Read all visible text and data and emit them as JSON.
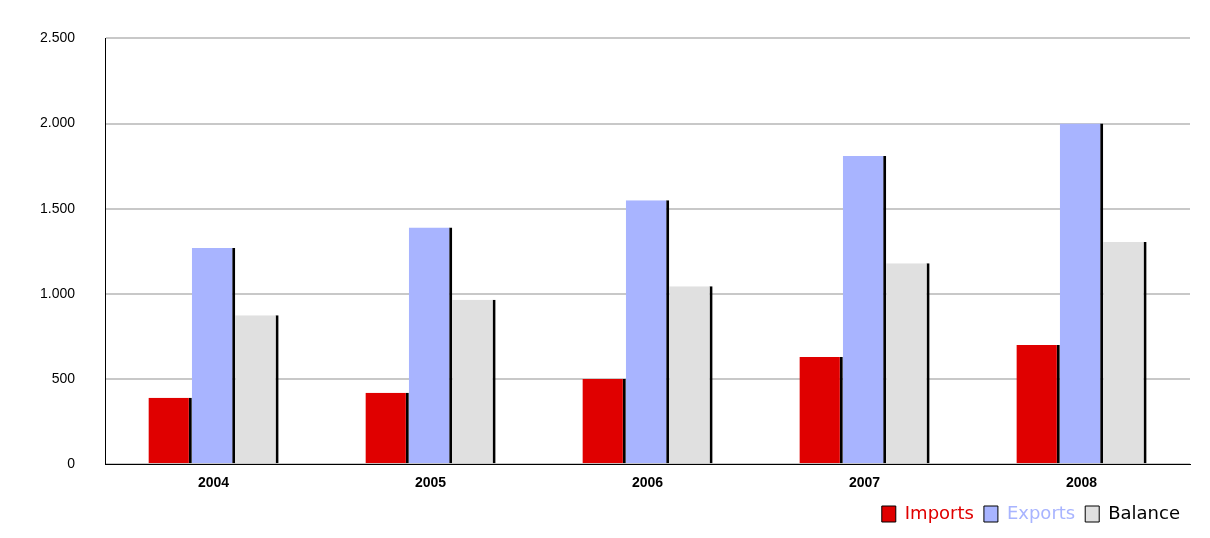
{
  "chart_data": {
    "type": "bar",
    "categories": [
      "2004",
      "2005",
      "2006",
      "2007",
      "2008"
    ],
    "series": [
      {
        "name": "Imports",
        "color": "#e00000",
        "values": [
          390,
          420,
          500,
          630,
          700
        ]
      },
      {
        "name": "Exports",
        "color": "#a8b4ff",
        "values": [
          1270,
          1390,
          1550,
          1810,
          2000
        ]
      },
      {
        "name": "Balance",
        "color": "#e0e0e0",
        "values": [
          875,
          965,
          1045,
          1180,
          1305
        ]
      }
    ],
    "ylim": [
      0,
      2500
    ],
    "yticks": [
      0,
      500,
      {
        "value": 1000,
        "label": "1.000"
      },
      {
        "value": 1500,
        "label": "1.500"
      },
      {
        "value": 2000,
        "label": "2.000"
      },
      {
        "value": 2500,
        "label": "2.500"
      }
    ],
    "grid": "y",
    "legend": "bottom right"
  }
}
